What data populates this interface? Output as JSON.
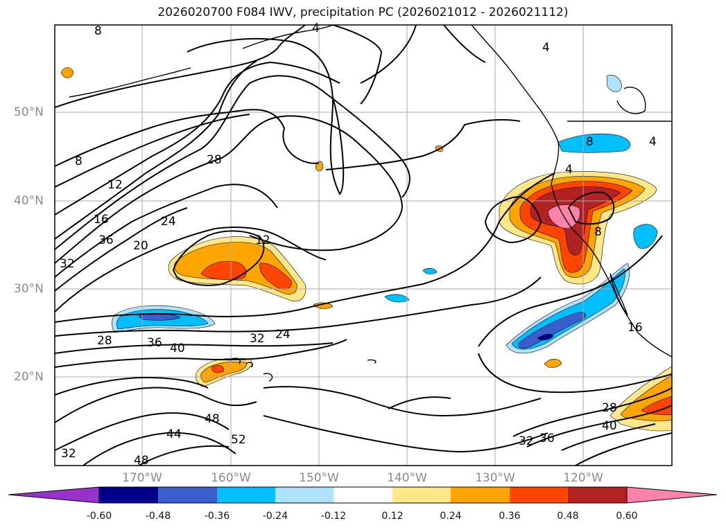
{
  "title": "2026020700 F084 IWV, precipitation PC (2026021012 - 2026021112)",
  "lat_labels": [
    "50°N",
    "40°N",
    "30°N",
    "20°N"
  ],
  "lon_labels": [
    "170°W",
    "160°W",
    "150°W",
    "140°W",
    "130°W",
    "120°W"
  ],
  "contour_labels": [
    "8",
    "4",
    "4",
    "8",
    "12",
    "16",
    "20",
    "24",
    "28",
    "36",
    "32",
    "12",
    "4",
    "4",
    "8",
    "8",
    "28",
    "36",
    "40",
    "32",
    "24",
    "16",
    "48",
    "44",
    "52",
    "48",
    "32",
    "28",
    "40",
    "32",
    "36"
  ],
  "colorbar": {
    "labels": [
      "-0.60",
      "-0.48",
      "-0.36",
      "-0.24",
      "-0.12",
      "0.12",
      "0.24",
      "0.36",
      "0.48",
      "0.60"
    ],
    "colors": [
      "#9932cc",
      "#00008b",
      "#3a5fcd",
      "#00bfff",
      "#b0e2ff",
      "#ffffff",
      "#ffe78a",
      "#ffa500",
      "#ff4500",
      "#b22222",
      "#ff82ab"
    ]
  },
  "colors": {
    "contour": "#000000",
    "grid": "#aaaaaa",
    "axis_text": "#8a8a8a"
  }
}
